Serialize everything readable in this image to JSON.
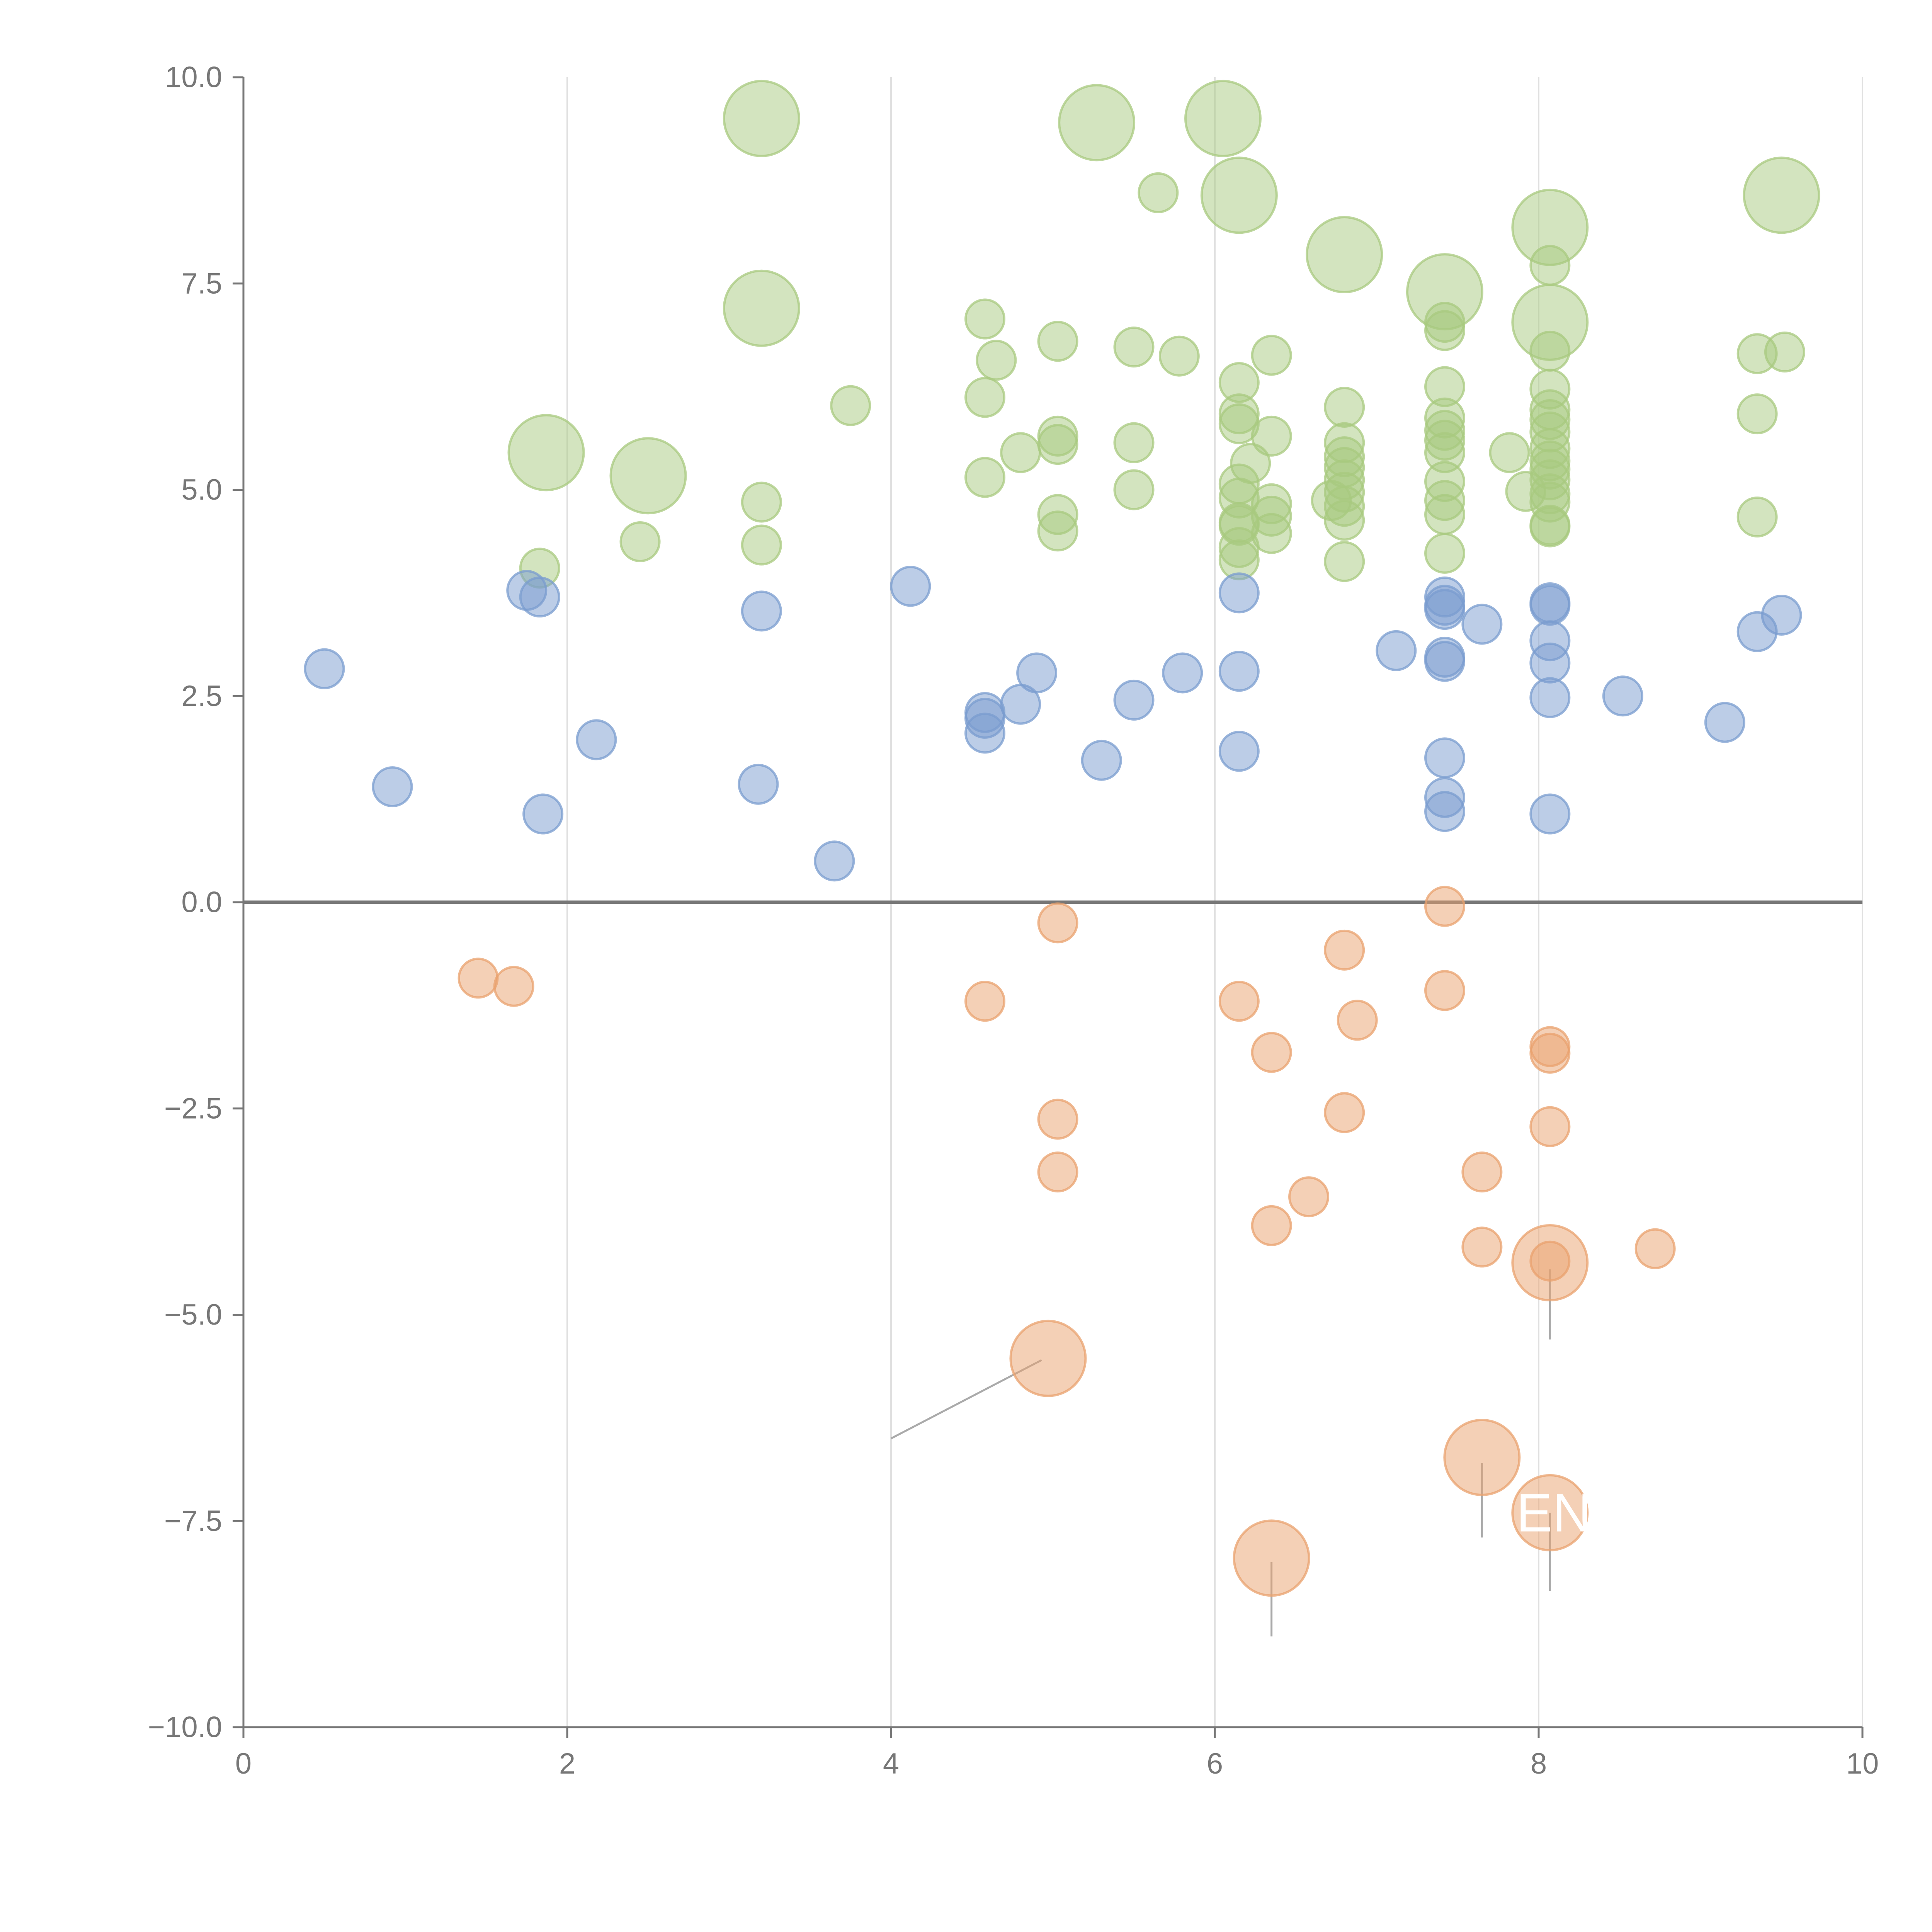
{
  "chart_data": {
    "type": "scatter",
    "title": "",
    "xlabel": "",
    "ylabel": "",
    "xlim": [
      0,
      10
    ],
    "ylim": [
      -10,
      10
    ],
    "grid": {
      "x": true,
      "y": false
    },
    "zero_line": true,
    "x_ticks": [
      {
        "value": 0,
        "label": "0"
      },
      {
        "value": 2,
        "label": "2"
      },
      {
        "value": 4,
        "label": "4"
      },
      {
        "value": 6,
        "label": "6"
      },
      {
        "value": 8,
        "label": "8"
      },
      {
        "value": 10,
        "label": "10"
      }
    ],
    "y_ticks": [
      {
        "value": 10,
        "label": "10.0"
      },
      {
        "value": 7.5,
        "label": "7.5"
      },
      {
        "value": 5,
        "label": "5.0"
      },
      {
        "value": 2.5,
        "label": "2.5"
      },
      {
        "value": 0,
        "label": "0.0"
      },
      {
        "value": -2.5,
        "label": "−2.5"
      },
      {
        "value": -5,
        "label": "−5.0"
      },
      {
        "value": -7.5,
        "label": "−7.5"
      },
      {
        "value": -10,
        "label": "−10.0"
      }
    ],
    "colors": {
      "green": "#a8c97f",
      "blue": "#7a9ccf",
      "orange": "#e9a26e",
      "axis": "#777777",
      "grid": "#e0e0e0",
      "zero_line": "#777777"
    },
    "callout_text": "EN",
    "series": [
      {
        "color_key": "green",
        "points": [
          {
            "x": 3.2,
            "y": 9.5,
            "size": "large"
          },
          {
            "x": 5.27,
            "y": 9.45,
            "size": "large"
          },
          {
            "x": 6.05,
            "y": 9.5,
            "size": "large"
          },
          {
            "x": 5.65,
            "y": 8.6,
            "size": "small"
          },
          {
            "x": 6.15,
            "y": 8.57,
            "size": "large"
          },
          {
            "x": 9.5,
            "y": 8.57,
            "size": "large"
          },
          {
            "x": 8.07,
            "y": 8.18,
            "size": "large"
          },
          {
            "x": 6.8,
            "y": 7.85,
            "size": "large"
          },
          {
            "x": 7.42,
            "y": 7.4,
            "size": "large"
          },
          {
            "x": 8.07,
            "y": 7.72,
            "size": "small"
          },
          {
            "x": 3.2,
            "y": 7.2,
            "size": "large"
          },
          {
            "x": 8.07,
            "y": 7.03,
            "size": "large"
          },
          {
            "x": 4.58,
            "y": 7.07,
            "size": "small"
          },
          {
            "x": 7.42,
            "y": 7.03,
            "size": "small"
          },
          {
            "x": 7.42,
            "y": 6.93,
            "size": "small"
          },
          {
            "x": 5.03,
            "y": 6.8,
            "size": "small"
          },
          {
            "x": 5.5,
            "y": 6.73,
            "size": "small"
          },
          {
            "x": 8.07,
            "y": 6.68,
            "size": "small"
          },
          {
            "x": 9.35,
            "y": 6.65,
            "size": "small"
          },
          {
            "x": 9.52,
            "y": 6.67,
            "size": "small"
          },
          {
            "x": 6.35,
            "y": 6.63,
            "size": "small"
          },
          {
            "x": 5.78,
            "y": 6.62,
            "size": "small"
          },
          {
            "x": 4.65,
            "y": 6.57,
            "size": "small"
          },
          {
            "x": 6.15,
            "y": 6.3,
            "size": "small"
          },
          {
            "x": 7.42,
            "y": 6.25,
            "size": "small"
          },
          {
            "x": 8.07,
            "y": 6.22,
            "size": "small"
          },
          {
            "x": 4.58,
            "y": 6.12,
            "size": "small"
          },
          {
            "x": 3.75,
            "y": 6.02,
            "size": "small"
          },
          {
            "x": 6.8,
            "y": 6.0,
            "size": "small"
          },
          {
            "x": 8.07,
            "y": 5.97,
            "size": "small"
          },
          {
            "x": 9.35,
            "y": 5.92,
            "size": "small"
          },
          {
            "x": 6.15,
            "y": 5.92,
            "size": "small"
          },
          {
            "x": 7.42,
            "y": 5.87,
            "size": "small"
          },
          {
            "x": 8.07,
            "y": 5.85,
            "size": "small"
          },
          {
            "x": 6.15,
            "y": 5.8,
            "size": "small"
          },
          {
            "x": 7.42,
            "y": 5.72,
            "size": "small"
          },
          {
            "x": 8.07,
            "y": 5.7,
            "size": "small"
          },
          {
            "x": 5.03,
            "y": 5.65,
            "size": "small"
          },
          {
            "x": 6.35,
            "y": 5.65,
            "size": "small"
          },
          {
            "x": 7.42,
            "y": 5.6,
            "size": "small"
          },
          {
            "x": 5.5,
            "y": 5.57,
            "size": "small"
          },
          {
            "x": 6.8,
            "y": 5.57,
            "size": "small"
          },
          {
            "x": 5.03,
            "y": 5.55,
            "size": "small"
          },
          {
            "x": 8.07,
            "y": 5.5,
            "size": "small"
          },
          {
            "x": 1.87,
            "y": 5.45,
            "size": "large"
          },
          {
            "x": 7.42,
            "y": 5.45,
            "size": "small"
          },
          {
            "x": 4.8,
            "y": 5.45,
            "size": "small"
          },
          {
            "x": 7.82,
            "y": 5.45,
            "size": "small"
          },
          {
            "x": 6.8,
            "y": 5.4,
            "size": "small"
          },
          {
            "x": 8.07,
            "y": 5.35,
            "size": "small"
          },
          {
            "x": 6.22,
            "y": 5.32,
            "size": "small"
          },
          {
            "x": 6.8,
            "y": 5.27,
            "size": "small"
          },
          {
            "x": 8.07,
            "y": 5.25,
            "size": "small"
          },
          {
            "x": 2.5,
            "y": 5.17,
            "size": "large"
          },
          {
            "x": 4.58,
            "y": 5.15,
            "size": "small"
          },
          {
            "x": 6.8,
            "y": 5.12,
            "size": "small"
          },
          {
            "x": 7.42,
            "y": 5.1,
            "size": "small"
          },
          {
            "x": 8.07,
            "y": 5.12,
            "size": "small"
          },
          {
            "x": 6.15,
            "y": 5.07,
            "size": "small"
          },
          {
            "x": 7.92,
            "y": 4.98,
            "size": "small"
          },
          {
            "x": 5.5,
            "y": 5.0,
            "size": "small"
          },
          {
            "x": 6.8,
            "y": 4.97,
            "size": "small"
          },
          {
            "x": 8.07,
            "y": 4.95,
            "size": "small"
          },
          {
            "x": 6.15,
            "y": 4.9,
            "size": "small"
          },
          {
            "x": 6.72,
            "y": 4.87,
            "size": "small"
          },
          {
            "x": 7.42,
            "y": 4.87,
            "size": "small"
          },
          {
            "x": 3.2,
            "y": 4.85,
            "size": "small"
          },
          {
            "x": 8.07,
            "y": 4.85,
            "size": "small"
          },
          {
            "x": 6.35,
            "y": 4.83,
            "size": "small"
          },
          {
            "x": 6.8,
            "y": 4.8,
            "size": "small"
          },
          {
            "x": 5.03,
            "y": 4.7,
            "size": "small"
          },
          {
            "x": 6.35,
            "y": 4.68,
            "size": "small"
          },
          {
            "x": 7.42,
            "y": 4.7,
            "size": "small"
          },
          {
            "x": 9.35,
            "y": 4.67,
            "size": "small"
          },
          {
            "x": 6.8,
            "y": 4.63,
            "size": "small"
          },
          {
            "x": 6.15,
            "y": 4.6,
            "size": "small"
          },
          {
            "x": 6.15,
            "y": 4.57,
            "size": "small"
          },
          {
            "x": 8.07,
            "y": 4.57,
            "size": "small"
          },
          {
            "x": 8.07,
            "y": 4.55,
            "size": "small"
          },
          {
            "x": 5.03,
            "y": 4.5,
            "size": "small"
          },
          {
            "x": 6.35,
            "y": 4.47,
            "size": "small"
          },
          {
            "x": 2.45,
            "y": 4.37,
            "size": "small"
          },
          {
            "x": 3.2,
            "y": 4.33,
            "size": "small"
          },
          {
            "x": 6.15,
            "y": 4.3,
            "size": "small"
          },
          {
            "x": 7.42,
            "y": 4.23,
            "size": "small"
          },
          {
            "x": 6.15,
            "y": 4.15,
            "size": "small"
          },
          {
            "x": 6.8,
            "y": 4.13,
            "size": "small"
          },
          {
            "x": 1.83,
            "y": 4.05,
            "size": "small"
          }
        ]
      },
      {
        "color_key": "blue",
        "points": [
          {
            "x": 4.12,
            "y": 3.83,
            "size": "small"
          },
          {
            "x": 1.75,
            "y": 3.78,
            "size": "small"
          },
          {
            "x": 6.15,
            "y": 3.75,
            "size": "small"
          },
          {
            "x": 1.83,
            "y": 3.7,
            "size": "small"
          },
          {
            "x": 7.42,
            "y": 3.7,
            "size": "small"
          },
          {
            "x": 7.42,
            "y": 3.6,
            "size": "small"
          },
          {
            "x": 8.07,
            "y": 3.63,
            "size": "small"
          },
          {
            "x": 8.07,
            "y": 3.6,
            "size": "small"
          },
          {
            "x": 7.42,
            "y": 3.55,
            "size": "small"
          },
          {
            "x": 3.2,
            "y": 3.53,
            "size": "small"
          },
          {
            "x": 9.5,
            "y": 3.48,
            "size": "small"
          },
          {
            "x": 7.65,
            "y": 3.37,
            "size": "small"
          },
          {
            "x": 9.35,
            "y": 3.28,
            "size": "small"
          },
          {
            "x": 8.07,
            "y": 3.17,
            "size": "small"
          },
          {
            "x": 7.12,
            "y": 3.05,
            "size": "small"
          },
          {
            "x": 7.42,
            "y": 2.97,
            "size": "small"
          },
          {
            "x": 7.42,
            "y": 2.92,
            "size": "small"
          },
          {
            "x": 8.07,
            "y": 2.9,
            "size": "small"
          },
          {
            "x": 0.5,
            "y": 2.83,
            "size": "small"
          },
          {
            "x": 6.15,
            "y": 2.8,
            "size": "small"
          },
          {
            "x": 5.8,
            "y": 2.78,
            "size": "small"
          },
          {
            "x": 4.9,
            "y": 2.78,
            "size": "small"
          },
          {
            "x": 8.52,
            "y": 2.5,
            "size": "small"
          },
          {
            "x": 8.07,
            "y": 2.48,
            "size": "small"
          },
          {
            "x": 5.5,
            "y": 2.45,
            "size": "small"
          },
          {
            "x": 4.8,
            "y": 2.4,
            "size": "small"
          },
          {
            "x": 4.58,
            "y": 2.3,
            "size": "small"
          },
          {
            "x": 4.58,
            "y": 2.23,
            "size": "small"
          },
          {
            "x": 9.15,
            "y": 2.18,
            "size": "small"
          },
          {
            "x": 4.58,
            "y": 2.05,
            "size": "small"
          },
          {
            "x": 2.18,
            "y": 1.97,
            "size": "small"
          },
          {
            "x": 6.15,
            "y": 1.83,
            "size": "small"
          },
          {
            "x": 7.42,
            "y": 1.75,
            "size": "small"
          },
          {
            "x": 5.3,
            "y": 1.72,
            "size": "small"
          },
          {
            "x": 3.18,
            "y": 1.43,
            "size": "small"
          },
          {
            "x": 0.92,
            "y": 1.4,
            "size": "small"
          },
          {
            "x": 7.42,
            "y": 1.27,
            "size": "small"
          },
          {
            "x": 7.42,
            "y": 1.1,
            "size": "small"
          },
          {
            "x": 1.85,
            "y": 1.07,
            "size": "small"
          },
          {
            "x": 8.07,
            "y": 1.07,
            "size": "small"
          },
          {
            "x": 3.65,
            "y": 0.5,
            "size": "small"
          }
        ]
      },
      {
        "color_key": "orange",
        "points": [
          {
            "x": 7.42,
            "y": -0.05,
            "size": "small"
          },
          {
            "x": 5.03,
            "y": -0.25,
            "size": "small"
          },
          {
            "x": 6.8,
            "y": -0.58,
            "size": "small"
          },
          {
            "x": 1.45,
            "y": -0.92,
            "size": "small"
          },
          {
            "x": 1.67,
            "y": -1.02,
            "size": "small"
          },
          {
            "x": 7.42,
            "y": -1.07,
            "size": "small"
          },
          {
            "x": 4.58,
            "y": -1.2,
            "size": "small"
          },
          {
            "x": 6.15,
            "y": -1.2,
            "size": "small"
          },
          {
            "x": 6.88,
            "y": -1.43,
            "size": "small"
          },
          {
            "x": 8.07,
            "y": -1.75,
            "size": "small"
          },
          {
            "x": 6.35,
            "y": -1.82,
            "size": "small"
          },
          {
            "x": 8.07,
            "y": -1.83,
            "size": "small"
          },
          {
            "x": 6.8,
            "y": -2.55,
            "size": "small"
          },
          {
            "x": 5.03,
            "y": -2.63,
            "size": "small"
          },
          {
            "x": 8.07,
            "y": -2.72,
            "size": "small"
          },
          {
            "x": 5.03,
            "y": -3.27,
            "size": "small"
          },
          {
            "x": 7.65,
            "y": -3.27,
            "size": "small"
          },
          {
            "x": 6.58,
            "y": -3.57,
            "size": "small"
          },
          {
            "x": 6.35,
            "y": -3.92,
            "size": "small"
          },
          {
            "x": 7.65,
            "y": -4.18,
            "size": "small"
          },
          {
            "x": 8.72,
            "y": -4.2,
            "size": "small"
          },
          {
            "x": 8.07,
            "y": -4.35,
            "size": "small"
          },
          {
            "x": 8.07,
            "y": -4.37,
            "size": "large"
          },
          {
            "x": 4.97,
            "y": -5.53,
            "size": "large"
          },
          {
            "x": 7.65,
            "y": -6.73,
            "size": "large"
          },
          {
            "x": 8.07,
            "y": -7.4,
            "size": "large"
          },
          {
            "x": 6.35,
            "y": -7.95,
            "size": "large"
          }
        ]
      }
    ],
    "leader_lines": [
      {
        "from": [
          4.93,
          -5.55
        ],
        "to": [
          4.0,
          -6.5
        ]
      },
      {
        "from": [
          8.07,
          -4.45
        ],
        "to": [
          8.07,
          -5.3
        ]
      },
      {
        "from": [
          7.65,
          -6.8
        ],
        "to": [
          7.65,
          -7.7
        ]
      },
      {
        "from": [
          8.07,
          -7.4
        ],
        "to": [
          8.07,
          -8.35
        ]
      },
      {
        "from": [
          6.35,
          -8.0
        ],
        "to": [
          6.35,
          -8.9
        ]
      }
    ]
  }
}
